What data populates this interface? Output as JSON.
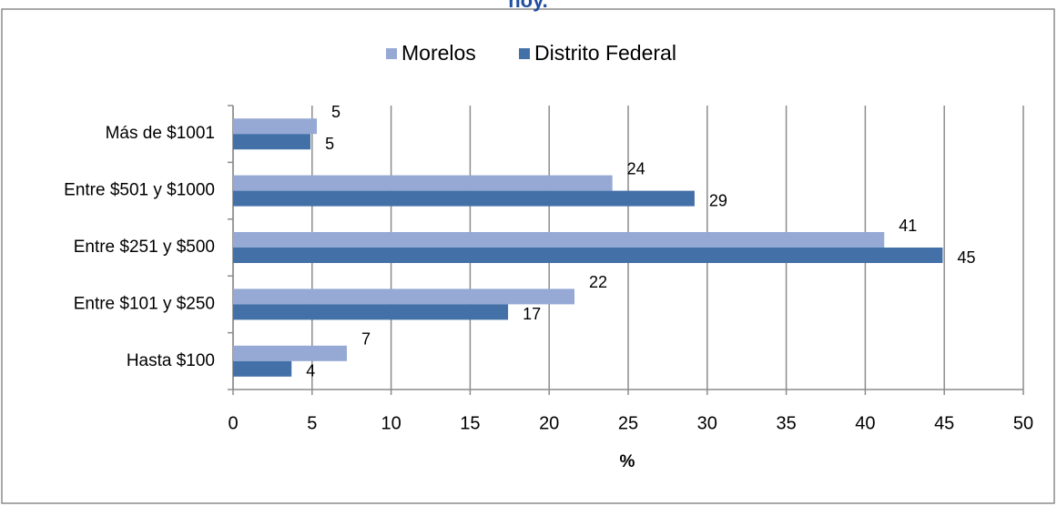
{
  "chart_data": {
    "type": "bar",
    "orientation": "horizontal",
    "title": "hoy.",
    "xlabel": "%",
    "categories": [
      "Más de $1001",
      "Entre $501 y $1000",
      "Entre $251 y $500",
      "Entre $101 y $250",
      "Hasta $100"
    ],
    "series": [
      {
        "name": "Morelos",
        "color": "#95a9d4",
        "values": [
          5.3,
          24.0,
          41.2,
          21.6,
          7.2
        ],
        "value_labels": [
          "5",
          "24",
          "41",
          "22",
          "7"
        ]
      },
      {
        "name": "Distrito Federal",
        "color": "#4470a8",
        "values": [
          4.9,
          29.2,
          44.9,
          17.4,
          3.7
        ],
        "value_labels": [
          "5",
          "29",
          "45",
          "17",
          "4"
        ]
      }
    ],
    "xlim": [
      0,
      50
    ],
    "xticks": [
      0,
      5,
      10,
      15,
      20,
      25,
      30,
      35,
      40,
      45,
      50
    ],
    "grid": true,
    "legend": "top"
  }
}
